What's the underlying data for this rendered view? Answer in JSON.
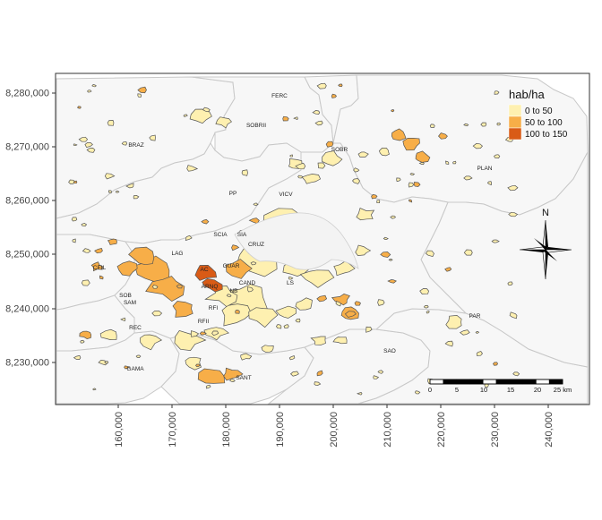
{
  "map": {
    "y_ticks": [
      "8,280,000",
      "8,270,000",
      "8,260,000",
      "8,250,000",
      "8,240,000",
      "8,230,000"
    ],
    "x_ticks": [
      "160,000",
      "170,000",
      "180,000",
      "190,000",
      "200,000",
      "210,000",
      "220,000",
      "230,000",
      "240,000"
    ],
    "legend": {
      "title": "hab/ha",
      "entries": [
        {
          "label": "0 to 50",
          "color": "#FEF0B0"
        },
        {
          "label": "50 to 100",
          "color": "#F7AE48"
        },
        {
          "label": "100 to 150",
          "color": "#D95B16"
        }
      ]
    },
    "north_label": "N",
    "scale_bar": {
      "labels": [
        "0",
        "5",
        "10",
        "15",
        "20",
        "25 km"
      ]
    },
    "region_labels": [
      "FERC",
      "SOBRII",
      "BRAZ",
      "SOBR",
      "PLAN",
      "PP",
      "VICV",
      "SCIA",
      "CRUZ",
      "SIA",
      "LAG",
      "CEIL",
      "AC",
      "GUAR",
      "ARNQ",
      "CAND",
      "NB",
      "SAM",
      "RFII",
      "PAR",
      "REC",
      "SAO",
      "GAMA",
      "SANT",
      "SOB",
      "RFI",
      "LS"
    ]
  }
}
